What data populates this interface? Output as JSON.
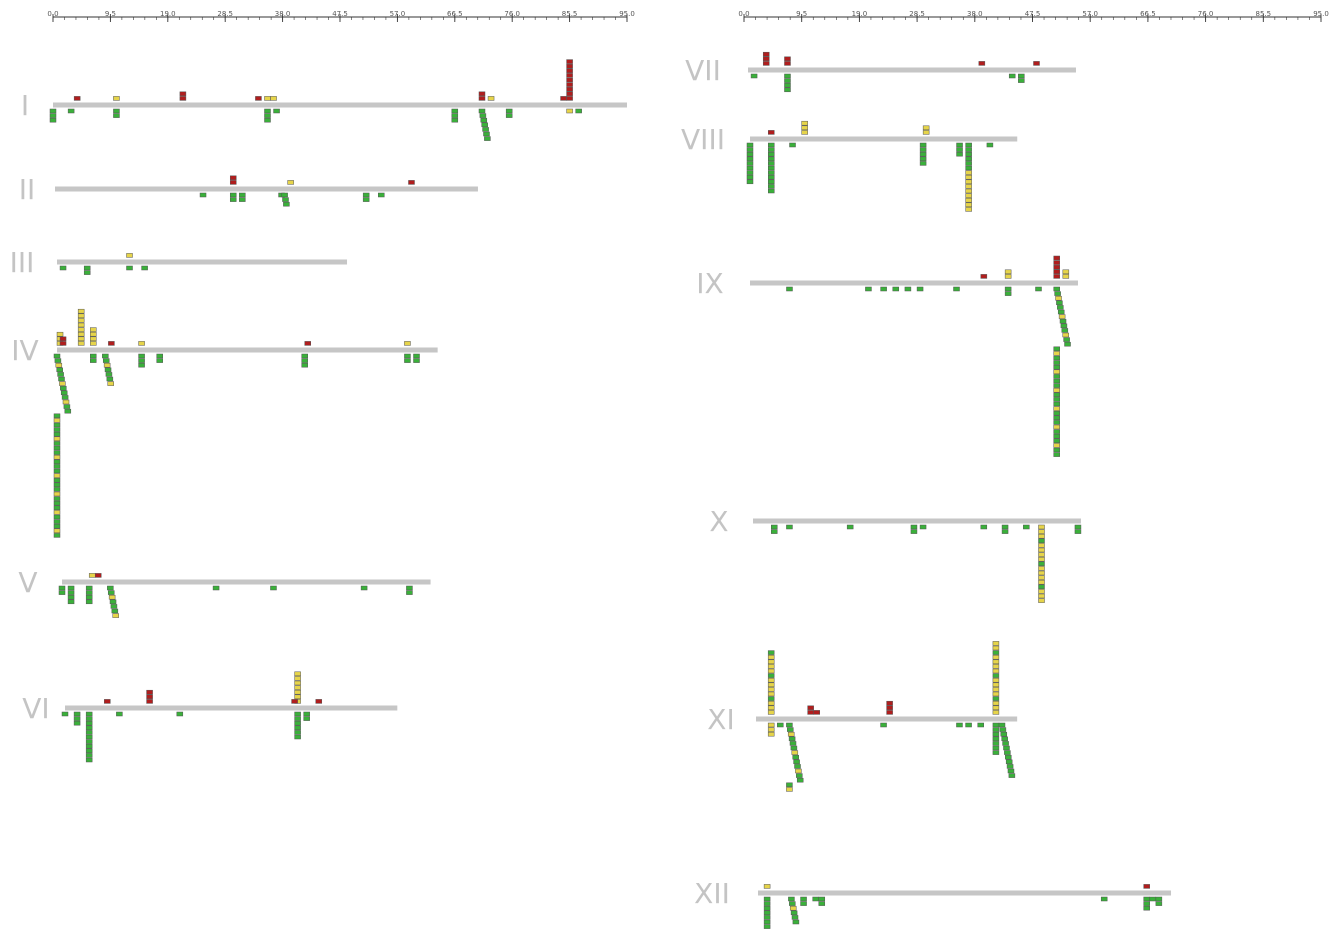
{
  "chart_data": {
    "type": "scatter",
    "title": "",
    "colors": {
      "bar": "#c6c6c6",
      "red": "#b01e1e",
      "yellow": "#e6d44a",
      "green": "#3ab03a",
      "axis": "#333333",
      "chrom_label": "#c4c4c4"
    },
    "axes": [
      {
        "ticks": [
          "0.0",
          "9.5",
          "19.0",
          "28.5",
          "38.0",
          "47.5",
          "57.0",
          "66.5",
          "76.0",
          "85.5",
          "95.0"
        ],
        "range": [
          0,
          95
        ]
      },
      {
        "ticks": [
          "0.0",
          "9.5",
          "19.0",
          "28.5",
          "38.0",
          "47.5",
          "57.0",
          "66.5",
          "76.0",
          "85.5",
          "95.0"
        ],
        "range": [
          0,
          95
        ]
      }
    ],
    "chromosomes": [
      {
        "name": "I",
        "panel": 0,
        "length": 95,
        "above": [
          [
            4,
            "r",
            1
          ],
          [
            10.5,
            "y",
            1
          ],
          [
            21.5,
            "r",
            2
          ],
          [
            34,
            "r",
            1
          ],
          [
            35.5,
            "y",
            1
          ],
          [
            36.5,
            "y",
            1
          ],
          [
            71,
            "r",
            2
          ],
          [
            72.5,
            "y",
            1
          ],
          [
            84.5,
            "r",
            1
          ],
          [
            85.5,
            "r",
            9
          ]
        ],
        "below": [
          [
            0,
            "g",
            3
          ],
          [
            3,
            "g",
            1
          ],
          [
            10.5,
            "g",
            2
          ],
          [
            35.5,
            "g",
            3
          ],
          [
            37,
            "g",
            1
          ],
          [
            66.5,
            "g",
            3
          ],
          [
            71,
            "mg",
            7
          ],
          [
            75.5,
            "g",
            2
          ],
          [
            85.5,
            "y",
            1
          ],
          [
            87,
            "g",
            1
          ]
        ]
      },
      {
        "name": "II",
        "panel": 0,
        "length": 70,
        "above": [
          [
            29.5,
            "r",
            2
          ],
          [
            39,
            "y",
            1
          ],
          [
            59,
            "r",
            1
          ]
        ],
        "below": [
          [
            24.5,
            "g",
            1
          ],
          [
            29.5,
            "g",
            2
          ],
          [
            31,
            "g",
            2
          ],
          [
            37.5,
            "g",
            1
          ],
          [
            38,
            "mg",
            3
          ],
          [
            51.5,
            "g",
            2
          ],
          [
            54,
            "g",
            1
          ]
        ]
      },
      {
        "name": "III",
        "panel": 0,
        "length": 48,
        "above": [
          [
            12,
            "y",
            1
          ]
        ],
        "below": [
          [
            1,
            "g",
            1
          ],
          [
            5,
            "g",
            2
          ],
          [
            12,
            "g",
            1
          ],
          [
            14.5,
            "g",
            1
          ]
        ]
      },
      {
        "name": "IV",
        "panel": 0,
        "length": 63,
        "above": [
          [
            0.5,
            "y",
            3
          ],
          [
            1,
            "r",
            2
          ],
          [
            4,
            "y",
            8
          ],
          [
            6,
            "y",
            4
          ],
          [
            9,
            "r",
            1
          ],
          [
            14,
            "y",
            1
          ],
          [
            41.5,
            "r",
            1
          ],
          [
            58,
            "y",
            1
          ]
        ],
        "below": [
          [
            0,
            "mc",
            40
          ],
          [
            6,
            "g",
            2
          ],
          [
            8,
            "mc",
            7
          ],
          [
            14,
            "g",
            3
          ],
          [
            17,
            "g",
            2
          ],
          [
            41,
            "g",
            3
          ],
          [
            58,
            "g",
            2
          ],
          [
            59.5,
            "g",
            2
          ]
        ]
      },
      {
        "name": "V",
        "panel": 0,
        "length": 61,
        "above": [
          [
            5,
            "y",
            1
          ],
          [
            6,
            "r",
            1
          ]
        ],
        "below": [
          [
            0,
            "g",
            2
          ],
          [
            1.5,
            "g",
            4
          ],
          [
            4.5,
            "g",
            4
          ],
          [
            8,
            "mc",
            7
          ],
          [
            25.5,
            "g",
            1
          ],
          [
            35,
            "g",
            1
          ],
          [
            50,
            "g",
            1
          ],
          [
            57.5,
            "g",
            2
          ]
        ]
      },
      {
        "name": "VI",
        "panel": 0,
        "length": 55,
        "above": [
          [
            7,
            "r",
            1
          ],
          [
            14,
            "r",
            3
          ],
          [
            38.5,
            "y",
            7
          ],
          [
            38,
            "r",
            1
          ],
          [
            42,
            "r",
            1
          ]
        ],
        "below": [
          [
            0,
            "g",
            1
          ],
          [
            2,
            "g",
            3
          ],
          [
            4,
            "g",
            11
          ],
          [
            9,
            "g",
            1
          ],
          [
            19,
            "g",
            1
          ],
          [
            38.5,
            "g",
            6
          ],
          [
            40,
            "g",
            2
          ]
        ]
      },
      {
        "name": "VII",
        "panel": 1,
        "length": 54,
        "above": [
          [
            3,
            "r",
            3
          ],
          [
            6.5,
            "r",
            2
          ],
          [
            38.5,
            "r",
            1
          ],
          [
            47.5,
            "r",
            1
          ]
        ],
        "below": [
          [
            1,
            "g",
            1
          ],
          [
            6.5,
            "g",
            4
          ],
          [
            43.5,
            "g",
            1
          ],
          [
            45,
            "g",
            2
          ]
        ]
      },
      {
        "name": "VIII",
        "panel": 1,
        "length": 44,
        "above": [
          [
            3.5,
            "r",
            1
          ],
          [
            9,
            "y",
            3
          ],
          [
            29,
            "y",
            2
          ]
        ],
        "below": [
          [
            0,
            "g",
            9
          ],
          [
            3.5,
            "g",
            11
          ],
          [
            7,
            "g",
            1
          ],
          [
            28.5,
            "g",
            5
          ],
          [
            34.5,
            "g",
            3
          ],
          [
            36,
            "mb",
            15
          ],
          [
            39.5,
            "g",
            1
          ]
        ]
      },
      {
        "name": "IX",
        "panel": 1,
        "length": 54,
        "above": [
          [
            38.5,
            "r",
            1
          ],
          [
            42.5,
            "y",
            2
          ],
          [
            50.5,
            "r",
            5
          ],
          [
            52,
            "y",
            2
          ]
        ],
        "below": [
          [
            6.5,
            "g",
            1
          ],
          [
            19.5,
            "g",
            1
          ],
          [
            22,
            "g",
            1
          ],
          [
            24,
            "g",
            1
          ],
          [
            26,
            "g",
            1
          ],
          [
            28,
            "g",
            1
          ],
          [
            34,
            "g",
            1
          ],
          [
            42.5,
            "g",
            2
          ],
          [
            47.5,
            "g",
            1
          ],
          [
            50.5,
            "mc",
            37
          ]
        ]
      },
      {
        "name": "X",
        "panel": 1,
        "length": 54,
        "above": [],
        "below": [
          [
            3.5,
            "g",
            2
          ],
          [
            6,
            "g",
            1
          ],
          [
            16,
            "g",
            1
          ],
          [
            26.5,
            "g",
            2
          ],
          [
            28,
            "g",
            1
          ],
          [
            38,
            "g",
            1
          ],
          [
            41.5,
            "g",
            2
          ],
          [
            45,
            "g",
            1
          ],
          [
            47.5,
            "my",
            17
          ],
          [
            53.5,
            "g",
            2
          ]
        ]
      },
      {
        "name": "XI",
        "panel": 1,
        "length": 43,
        "above": [
          [
            2.5,
            "my",
            14
          ],
          [
            9,
            "r",
            2
          ],
          [
            10,
            "r",
            1
          ],
          [
            22,
            "r",
            3
          ],
          [
            39.5,
            "my",
            16
          ]
        ],
        "below": [
          [
            2.5,
            "y",
            3
          ],
          [
            4,
            "g",
            1
          ],
          [
            5.5,
            "mc",
            15
          ],
          [
            21,
            "g",
            1
          ],
          [
            33.5,
            "g",
            1
          ],
          [
            35,
            "g",
            1
          ],
          [
            37,
            "g",
            1
          ],
          [
            39.5,
            "g",
            7
          ],
          [
            40.5,
            "mg",
            12
          ]
        ]
      },
      {
        "name": "XII",
        "panel": 1,
        "length": 68,
        "above": [
          [
            1.5,
            "y",
            1
          ],
          [
            64,
            "r",
            1
          ]
        ],
        "below": [
          [
            1.5,
            "g",
            7
          ],
          [
            5.5,
            "mc",
            6
          ],
          [
            7.5,
            "g",
            2
          ],
          [
            9.5,
            "g",
            1
          ],
          [
            10.5,
            "g",
            2
          ],
          [
            57,
            "g",
            1
          ],
          [
            64,
            "g",
            3
          ],
          [
            65,
            "g",
            1
          ],
          [
            66,
            "g",
            2
          ]
        ]
      }
    ]
  }
}
